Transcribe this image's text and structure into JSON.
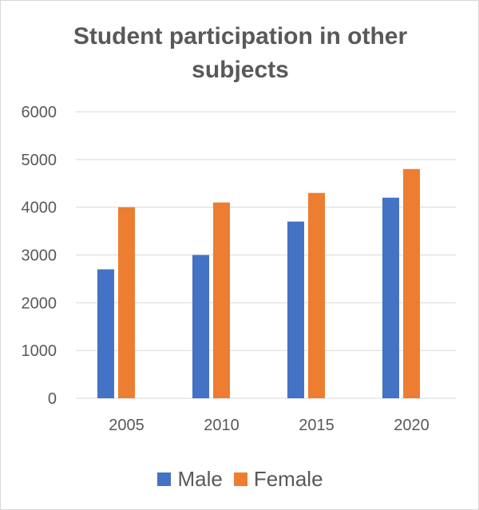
{
  "chart_data": {
    "type": "bar",
    "title": "Student participation in other subjects",
    "categories": [
      "2005",
      "2010",
      "2015",
      "2020"
    ],
    "series": [
      {
        "name": "Male",
        "values": [
          2700,
          3000,
          3700,
          4200
        ],
        "color": "#4472c4"
      },
      {
        "name": "Female",
        "values": [
          4000,
          4100,
          4300,
          4800
        ],
        "color": "#ed7d31"
      }
    ],
    "ylim": [
      0,
      6000
    ],
    "yticks": [
      "0",
      "1000",
      "2000",
      "3000",
      "4000",
      "5000",
      "6000"
    ],
    "grid": true,
    "legend_position": "bottom",
    "gridline_color": "#d9d9d9",
    "text_color": "#595959"
  }
}
